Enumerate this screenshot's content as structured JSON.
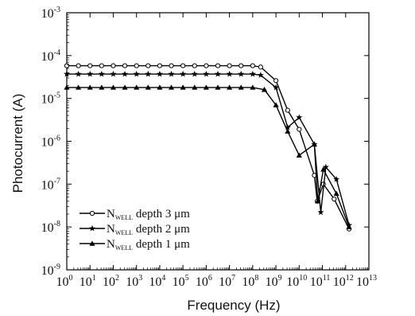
{
  "chart_data": {
    "type": "line",
    "xlabel": "Frequency (Hz)",
    "ylabel": "Photocurrent (A)",
    "x_scale": "log",
    "y_scale": "log",
    "xlim": [
      1,
      10000000000000.0
    ],
    "ylim": [
      1e-09,
      0.001
    ],
    "x_ticks": [
      {
        "base": "10",
        "exp": "0"
      },
      {
        "base": "10",
        "exp": "1"
      },
      {
        "base": "10",
        "exp": "2"
      },
      {
        "base": "10",
        "exp": "3"
      },
      {
        "base": "10",
        "exp": "4"
      },
      {
        "base": "10",
        "exp": "5"
      },
      {
        "base": "10",
        "exp": "6"
      },
      {
        "base": "10",
        "exp": "7"
      },
      {
        "base": "10",
        "exp": "8"
      },
      {
        "base": "10",
        "exp": "9"
      },
      {
        "base": "10",
        "exp": "10"
      },
      {
        "base": "10",
        "exp": "11"
      },
      {
        "base": "10",
        "exp": "12"
      },
      {
        "base": "10",
        "exp": "13"
      }
    ],
    "y_ticks": [
      {
        "base": "10",
        "exp": "-3"
      },
      {
        "base": "10",
        "exp": "-4"
      },
      {
        "base": "10",
        "exp": "-5"
      },
      {
        "base": "10",
        "exp": "-6"
      },
      {
        "base": "10",
        "exp": "-7"
      },
      {
        "base": "10",
        "exp": "-8"
      },
      {
        "base": "10",
        "exp": "-9"
      }
    ],
    "legend_position": "bottom-left",
    "series": [
      {
        "name_main": "N",
        "name_sub": "WELL",
        "name_rest": " depth 3 μm",
        "marker": "circle",
        "x": [
          1,
          31600000.0,
          100000000.0,
          220000000.0,
          1000000000.0,
          3200000000.0,
          10000000000.0,
          45000000000.0,
          60000000000.0,
          110000000000.0,
          320000000000.0,
          1400000000000.0
        ],
        "y": [
          5.8e-05,
          5.8e-05,
          5.8e-05,
          5.4e-05,
          2.6e-05,
          5.3e-06,
          1.9e-06,
          1.6e-07,
          4e-08,
          1e-07,
          4.5e-08,
          9e-09
        ]
      },
      {
        "name_main": "N",
        "name_sub": "WELL",
        "name_rest": " depth 2 μm",
        "marker": "star",
        "x": [
          1,
          31600000.0,
          100000000.0,
          220000000.0,
          1000000000.0,
          3200000000.0,
          10000000000.0,
          45000000000.0,
          85000000000.0,
          140000000000.0,
          400000000000.0,
          1400000000000.0
        ],
        "y": [
          3.7e-05,
          3.7e-05,
          3.7e-05,
          3.5e-05,
          1.8e-05,
          2.1e-06,
          3.6e-06,
          8.5e-07,
          2.2e-08,
          2.5e-07,
          1.3e-07,
          1.1e-08
        ]
      },
      {
        "name_main": "N",
        "name_sub": "WELL",
        "name_rest": " depth 1 μm",
        "marker": "triangle",
        "x": [
          1,
          31600000.0,
          100000000.0,
          320000000.0,
          1000000000.0,
          3200000000.0,
          10000000000.0,
          45000000000.0,
          63000000000.0,
          110000000000.0,
          400000000000.0,
          1400000000000.0
        ],
        "y": [
          1.8e-05,
          1.8e-05,
          1.8e-05,
          1.6e-05,
          7e-06,
          1.7e-06,
          4.7e-07,
          8.5e-07,
          4e-08,
          2.2e-07,
          6e-08,
          1e-08
        ]
      }
    ]
  }
}
